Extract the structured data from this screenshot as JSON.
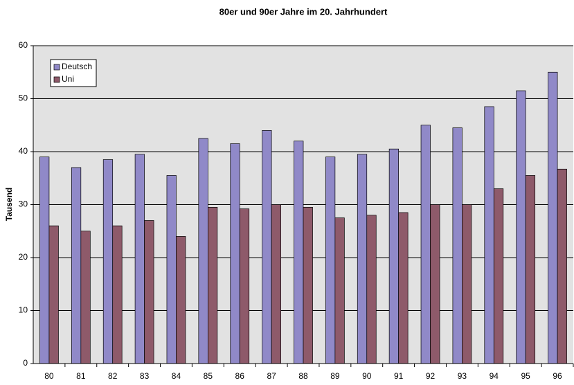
{
  "chart_data": {
    "type": "bar",
    "title": "80er und 90er Jahre im 20. Jahrhundert",
    "y_label": "Tausend",
    "categories": [
      "80",
      "81",
      "82",
      "83",
      "84",
      "85",
      "86",
      "87",
      "88",
      "89",
      "90",
      "91",
      "92",
      "93",
      "94",
      "95",
      "96"
    ],
    "series": [
      {
        "name": "Deutsch",
        "color": "#9089c8",
        "values": [
          39,
          37,
          38.5,
          39.5,
          35.5,
          42.5,
          41.5,
          44,
          42,
          39,
          39.5,
          40.5,
          45,
          44.5,
          48.5,
          51.5,
          55
        ]
      },
      {
        "name": "Uni",
        "color": "#8e5a6a",
        "values": [
          26,
          25,
          26,
          27,
          24,
          29.5,
          29.2,
          30,
          29.5,
          27.5,
          28,
          28.5,
          30,
          30,
          33,
          35.5,
          36.7
        ]
      }
    ],
    "ylim": [
      0,
      60
    ],
    "yticks": [
      0,
      10,
      20,
      30,
      40,
      50,
      60
    ],
    "grid": true,
    "legend": "top-left"
  }
}
